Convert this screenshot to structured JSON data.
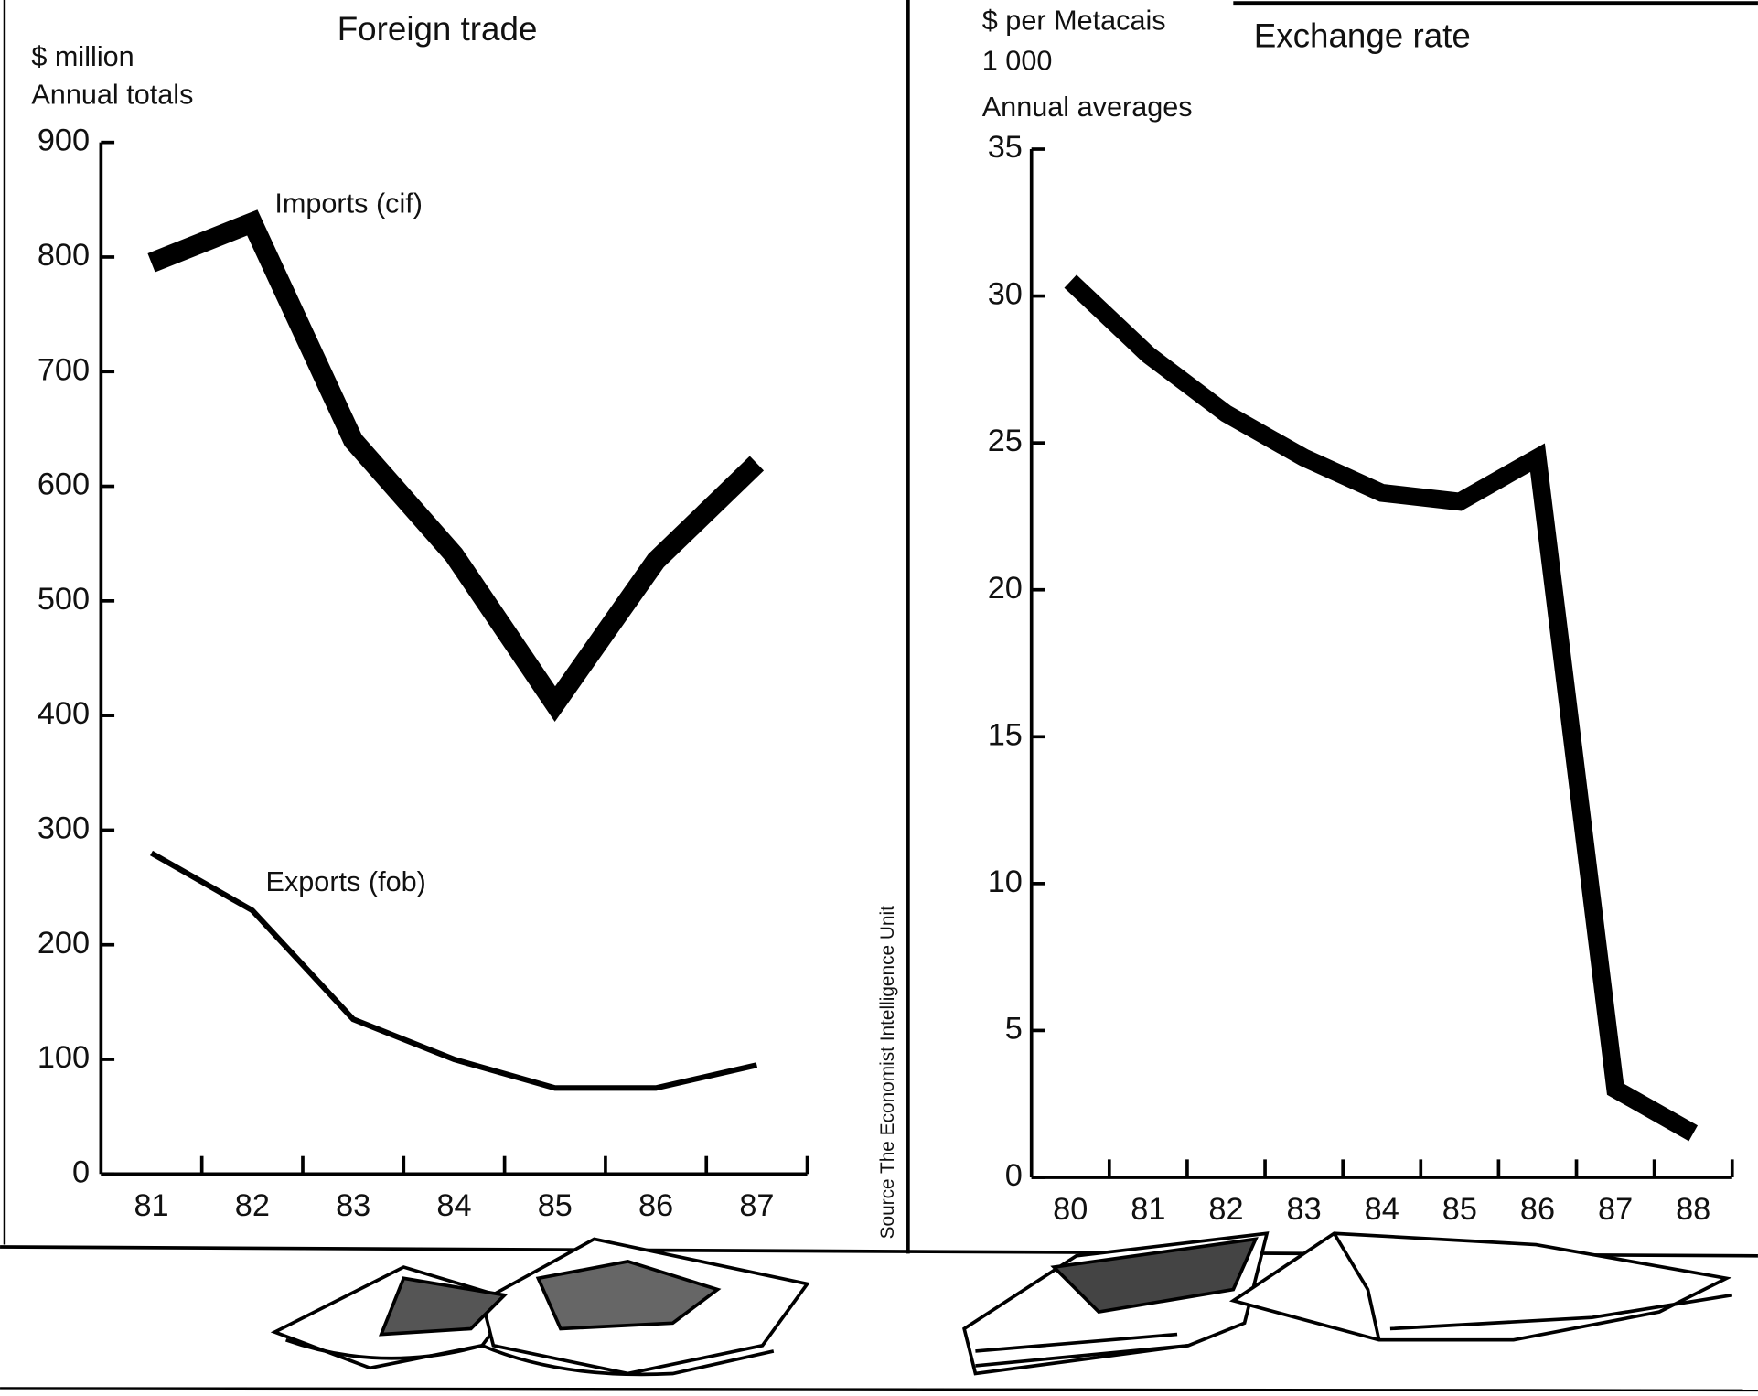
{
  "chart_data": [
    {
      "type": "line",
      "title": "Foreign trade",
      "y_label": [
        "$ million"
      ],
      "subtitle": "Annual totals",
      "categories": [
        "81",
        "82",
        "83",
        "84",
        "85",
        "86",
        "87"
      ],
      "series": [
        {
          "name": "Imports (cif)",
          "color": "#000000",
          "values": [
            795,
            830,
            640,
            540,
            410,
            535,
            620
          ]
        },
        {
          "name": "Exports (fob)",
          "color": "#000000",
          "values": [
            280,
            230,
            135,
            100,
            75,
            75,
            95
          ]
        }
      ],
      "ylim": [
        0,
        900
      ],
      "yticks": [
        0,
        100,
        200,
        300,
        400,
        500,
        600,
        700,
        800,
        900
      ],
      "grid": false
    },
    {
      "type": "line",
      "title": "Exchange rate",
      "y_label": [
        "$ per Metacais",
        "1 000"
      ],
      "subtitle": "Annual averages",
      "categories": [
        "80",
        "81",
        "82",
        "83",
        "84",
        "85",
        "86",
        "87",
        "88"
      ],
      "series": [
        {
          "name": "Exchange rate",
          "color": "#000000",
          "values": [
            30.5,
            28,
            26,
            24.5,
            23.3,
            23,
            24.5,
            3,
            1.5
          ]
        }
      ],
      "ylim": [
        0,
        35
      ],
      "yticks": [
        0,
        5,
        10,
        15,
        20,
        25,
        30,
        35
      ],
      "grid": false
    }
  ],
  "source": "Source The Economist Intelligence Unit"
}
